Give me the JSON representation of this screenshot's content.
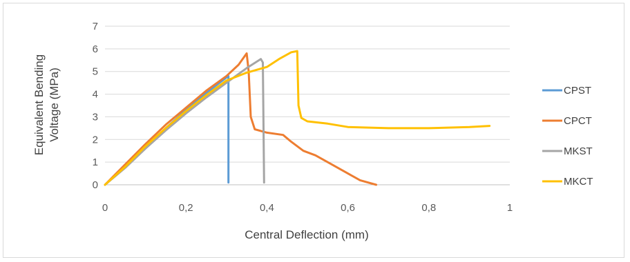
{
  "chart_data": {
    "type": "line",
    "title": "",
    "xlabel": "Central Deflection (mm)",
    "ylabel_lines": [
      "Equivalent Bending",
      "Voltage (MPa)"
    ],
    "xlim": [
      0,
      1
    ],
    "ylim": [
      0,
      7
    ],
    "x_ticks": [
      0,
      0.2,
      0.4,
      0.6,
      0.8,
      1
    ],
    "x_tick_labels": [
      "0",
      "0,2",
      "0,4",
      "0,6",
      "0,8",
      "1"
    ],
    "y_ticks": [
      0,
      1,
      2,
      3,
      4,
      5,
      6,
      7
    ],
    "y_tick_labels": [
      "0",
      "1",
      "2",
      "3",
      "4",
      "5",
      "6",
      "7"
    ],
    "grid": "horizontal",
    "legend_position": "right",
    "series": [
      {
        "name": "CPST",
        "color": "#5B9BD5",
        "points": [
          [
            0,
            0
          ],
          [
            0.05,
            0.8
          ],
          [
            0.1,
            1.65
          ],
          [
            0.15,
            2.5
          ],
          [
            0.2,
            3.3
          ],
          [
            0.25,
            4.05
          ],
          [
            0.29,
            4.6
          ],
          [
            0.305,
            4.8
          ],
          [
            0.305,
            0.1
          ]
        ]
      },
      {
        "name": "CPCT",
        "color": "#ED7D31",
        "points": [
          [
            0,
            0
          ],
          [
            0.05,
            0.9
          ],
          [
            0.1,
            1.8
          ],
          [
            0.15,
            2.65
          ],
          [
            0.2,
            3.4
          ],
          [
            0.25,
            4.15
          ],
          [
            0.3,
            4.8
          ],
          [
            0.33,
            5.3
          ],
          [
            0.35,
            5.8
          ],
          [
            0.355,
            5.0
          ],
          [
            0.36,
            3.0
          ],
          [
            0.37,
            2.45
          ],
          [
            0.4,
            2.3
          ],
          [
            0.44,
            2.2
          ],
          [
            0.46,
            1.9
          ],
          [
            0.49,
            1.5
          ],
          [
            0.52,
            1.3
          ],
          [
            0.56,
            0.9
          ],
          [
            0.6,
            0.5
          ],
          [
            0.63,
            0.2
          ],
          [
            0.67,
            0.0
          ]
        ]
      },
      {
        "name": "MKST",
        "color": "#A5A5A5",
        "points": [
          [
            0,
            0
          ],
          [
            0.05,
            0.75
          ],
          [
            0.1,
            1.6
          ],
          [
            0.15,
            2.4
          ],
          [
            0.2,
            3.15
          ],
          [
            0.25,
            3.85
          ],
          [
            0.3,
            4.5
          ],
          [
            0.35,
            5.15
          ],
          [
            0.385,
            5.55
          ],
          [
            0.39,
            5.4
          ],
          [
            0.393,
            0.1
          ]
        ]
      },
      {
        "name": "MKCT",
        "color": "#FFC000",
        "points": [
          [
            0,
            0
          ],
          [
            0.05,
            0.8
          ],
          [
            0.1,
            1.7
          ],
          [
            0.15,
            2.5
          ],
          [
            0.2,
            3.25
          ],
          [
            0.25,
            3.95
          ],
          [
            0.3,
            4.6
          ],
          [
            0.35,
            4.95
          ],
          [
            0.4,
            5.2
          ],
          [
            0.43,
            5.55
          ],
          [
            0.46,
            5.85
          ],
          [
            0.475,
            5.9
          ],
          [
            0.478,
            3.5
          ],
          [
            0.485,
            2.95
          ],
          [
            0.5,
            2.8
          ],
          [
            0.55,
            2.7
          ],
          [
            0.6,
            2.55
          ],
          [
            0.7,
            2.5
          ],
          [
            0.8,
            2.5
          ],
          [
            0.9,
            2.55
          ],
          [
            0.95,
            2.6
          ]
        ]
      }
    ]
  }
}
